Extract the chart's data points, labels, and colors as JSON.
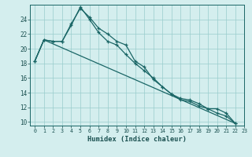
{
  "xlabel": "Humidex (Indice chaleur)",
  "bg_color": "#d4eeee",
  "line_color": "#1a6666",
  "grid_color": "#99cccc",
  "xlim": [
    -0.5,
    23
  ],
  "ylim": [
    9.5,
    26.0
  ],
  "xticks": [
    0,
    1,
    2,
    3,
    4,
    5,
    6,
    7,
    8,
    9,
    10,
    11,
    12,
    13,
    14,
    15,
    16,
    17,
    18,
    19,
    20,
    21,
    22,
    23
  ],
  "yticks": [
    10,
    12,
    14,
    16,
    18,
    20,
    22,
    24
  ],
  "line1_x": [
    0,
    1,
    2,
    3,
    4,
    5,
    6,
    7,
    8,
    9,
    10,
    11,
    12,
    13,
    14,
    15,
    16,
    17,
    18,
    19,
    20,
    21,
    22
  ],
  "line1_y": [
    18.3,
    21.2,
    21.0,
    21.0,
    23.4,
    25.5,
    24.3,
    22.8,
    22.0,
    21.0,
    20.5,
    18.3,
    17.5,
    15.8,
    14.8,
    13.8,
    13.0,
    12.8,
    12.2,
    11.8,
    11.2,
    10.8,
    9.8
  ],
  "line2_x": [
    0,
    1,
    2,
    3,
    4,
    5,
    6,
    7,
    8,
    9,
    10,
    11,
    12,
    13,
    14,
    15,
    16,
    17,
    18,
    19,
    20,
    21,
    22
  ],
  "line2_y": [
    18.3,
    21.2,
    21.0,
    21.0,
    23.2,
    25.7,
    24.0,
    22.2,
    21.0,
    20.5,
    19.2,
    18.0,
    17.0,
    16.0,
    14.8,
    13.8,
    13.2,
    13.0,
    12.5,
    11.8,
    11.8,
    11.2,
    9.8
  ],
  "line3_x": [
    0,
    1,
    22
  ],
  "line3_y": [
    18.3,
    21.2,
    9.8
  ]
}
